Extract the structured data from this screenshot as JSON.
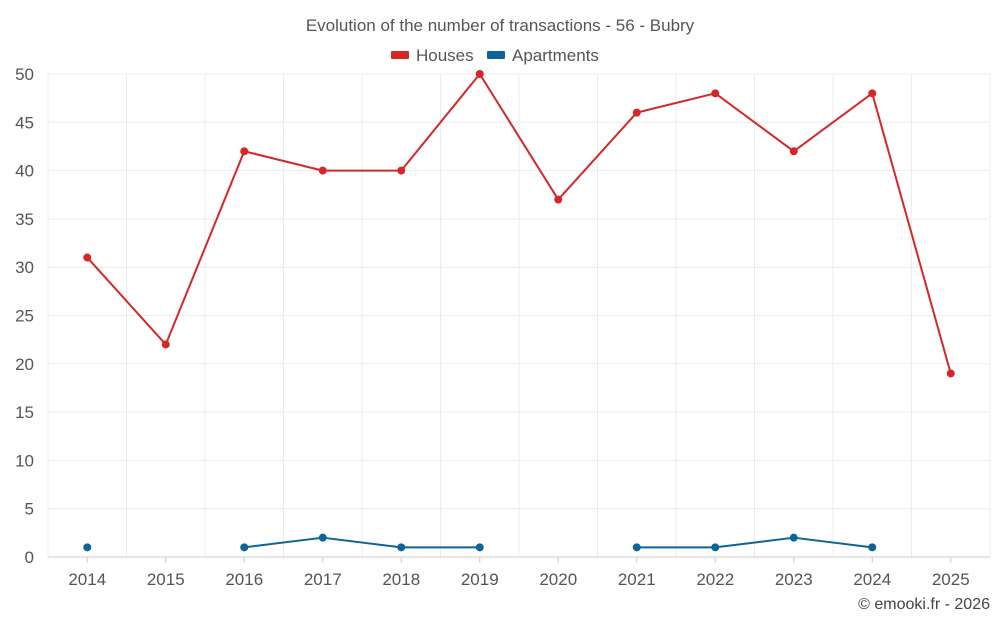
{
  "chart_data": {
    "type": "line",
    "title": "Evolution of the number of transactions - 56 - Bubry",
    "categories": [
      "2014",
      "2015",
      "2016",
      "2017",
      "2018",
      "2019",
      "2020",
      "2021",
      "2022",
      "2023",
      "2024",
      "2025"
    ],
    "ylim": [
      0,
      50
    ],
    "yticks": [
      0,
      5,
      10,
      15,
      20,
      25,
      30,
      35,
      40,
      45,
      50
    ],
    "grid": true,
    "legend_position": "top-center",
    "series": [
      {
        "name": "Houses",
        "color": "#d62728",
        "values": [
          31,
          22,
          42,
          40,
          40,
          50,
          37,
          46,
          48,
          42,
          48,
          19
        ]
      },
      {
        "name": "Apartments",
        "color": "#0c6499",
        "values": [
          1,
          null,
          1,
          2,
          1,
          1,
          null,
          1,
          1,
          2,
          1,
          null
        ]
      }
    ],
    "credit": "© emooki.fr - 2026"
  }
}
